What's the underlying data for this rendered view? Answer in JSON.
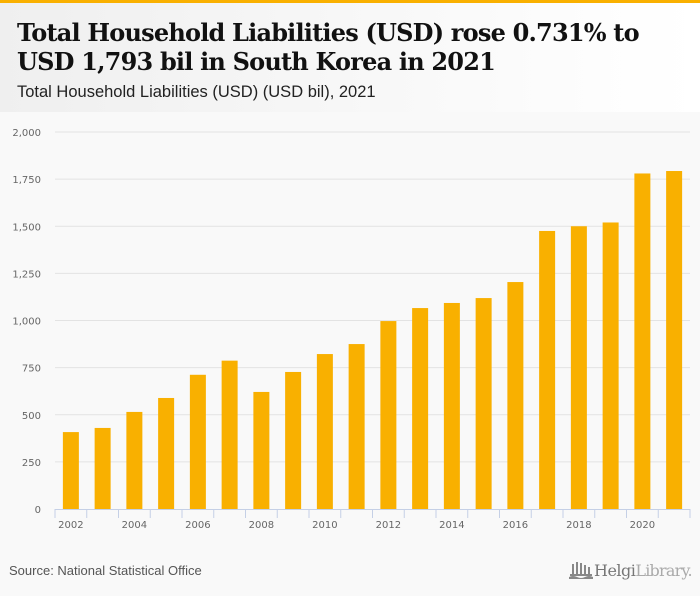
{
  "header": {
    "title": "Total Household Liabilities (USD) rose 0.731% to USD 1,793 bil in South Korea in 2021",
    "subtitle": "Total Household Liabilities (USD) (USD bil), 2021"
  },
  "footer": {
    "source": "Source: National Statistical Office",
    "logo_part1": "Helgi",
    "logo_part2": "Library."
  },
  "colors": {
    "accent": "#f9b000",
    "bar": "#f9b000",
    "grid": "#e3e3e3",
    "axis": "#c5d0e6",
    "tick_text": "#666666"
  },
  "chart_data": {
    "type": "bar",
    "title": "Total Household Liabilities (USD) (USD bil), 2021",
    "xlabel": "",
    "ylabel": "",
    "ylim": [
      0,
      2000
    ],
    "yticks": [
      0,
      250,
      500,
      750,
      1000,
      1250,
      1500,
      1750,
      2000
    ],
    "ytick_labels": [
      "0",
      "250",
      "500",
      "750",
      "1,000",
      "1,250",
      "1,500",
      "1,750",
      "2,000"
    ],
    "grid": true,
    "legend": "none",
    "categories": [
      "2002",
      "2003",
      "2004",
      "2005",
      "2006",
      "2007",
      "2008",
      "2009",
      "2010",
      "2011",
      "2012",
      "2013",
      "2014",
      "2015",
      "2016",
      "2017",
      "2018",
      "2019",
      "2020",
      "2021"
    ],
    "xtick_labels": [
      "2002",
      "",
      "2004",
      "",
      "2006",
      "",
      "2008",
      "",
      "2010",
      "",
      "2012",
      "",
      "2014",
      "",
      "2016",
      "",
      "2018",
      "",
      "2020",
      ""
    ],
    "values": [
      408,
      430,
      515,
      589,
      712,
      787,
      621,
      727,
      822,
      875,
      997,
      1066,
      1093,
      1119,
      1204,
      1475,
      1500,
      1520,
      1780,
      1793
    ]
  }
}
